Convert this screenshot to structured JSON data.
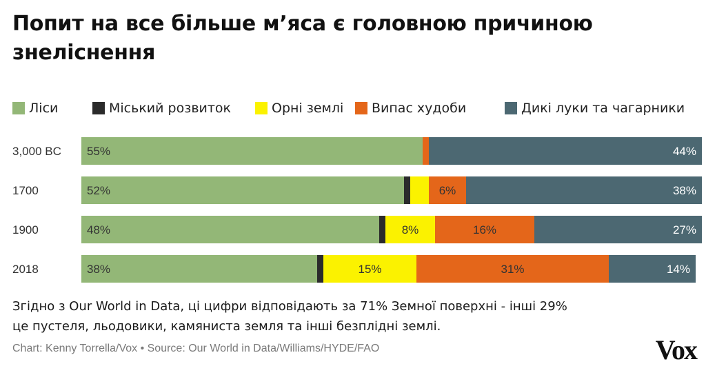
{
  "title": "Попит на все більше м’яса є головною причиною знеліснення",
  "legend": [
    {
      "label": "Ліси",
      "color": "#93b777"
    },
    {
      "label": "Міський розвиток",
      "color": "#2b2b2b"
    },
    {
      "label": "Орні землі",
      "color": "#fbf200"
    },
    {
      "label": "Випас худоби",
      "color": "#e4661a"
    },
    {
      "label": "Дикі луки та чагарники",
      "color": "#4c6872"
    }
  ],
  "chart_data": {
    "type": "bar",
    "orientation": "horizontal",
    "stacked": true,
    "unit": "%",
    "categories": [
      "3,000 BC",
      "1700",
      "1900",
      "2018"
    ],
    "series": [
      {
        "name": "Ліси",
        "color": "#93b777",
        "values": [
          55,
          52,
          48,
          38
        ],
        "labels": [
          "55%",
          "52%",
          "48%",
          "38%"
        ]
      },
      {
        "name": "Міський розвиток",
        "color": "#2b2b2b",
        "values": [
          0,
          1,
          1,
          1
        ],
        "labels": [
          "",
          "",
          "",
          ""
        ]
      },
      {
        "name": "Орні землі",
        "color": "#fbf200",
        "values": [
          0,
          3,
          8,
          15
        ],
        "labels": [
          "",
          "",
          "8%",
          "15%"
        ]
      },
      {
        "name": "Випас худоби",
        "color": "#e4661a",
        "values": [
          1,
          6,
          16,
          31
        ],
        "labels": [
          "",
          "6%",
          "16%",
          "31%"
        ]
      },
      {
        "name": "Дикі луки та чагарники",
        "color": "#4c6872",
        "values": [
          44,
          38,
          27,
          14
        ],
        "labels": [
          "44%",
          "38%",
          "27%",
          "14%"
        ]
      }
    ],
    "xlim": [
      0,
      100
    ],
    "grid": false,
    "legend_position": "top"
  },
  "footnote_line1": "Згідно з Our World in Data, ці цифри відповідають за 71% Земної поверхні - інші 29%",
  "footnote_line2": "це пустеля, льодовики, камяниста земля та інші безплідні землі.",
  "source": "Chart: Kenny Torrella/Vox • Source: Our World in Data/Williams/HYDE/FAO",
  "logo": "Vox"
}
